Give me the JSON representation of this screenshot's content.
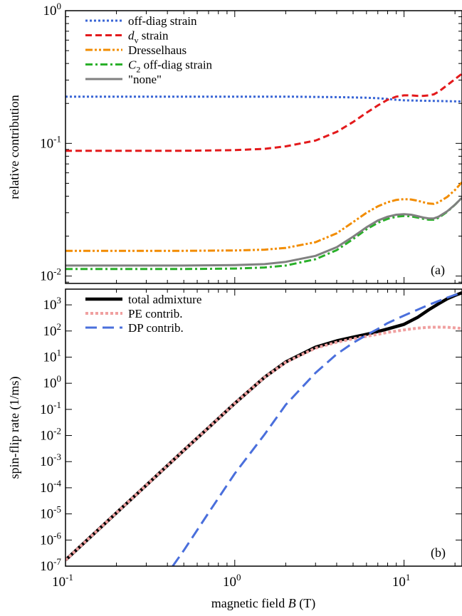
{
  "colors": {
    "blue": "#3a66d6",
    "red": "#e31a1c",
    "orange": "#f28c00",
    "green": "#2ab02a",
    "gray": "#808080",
    "black": "#000000",
    "pink": "#f0a0a0",
    "dp_blue": "#4a6fdc"
  },
  "chart_data": [
    {
      "type": "line",
      "panel_label": "(a)",
      "xscale": "log",
      "yscale": "log",
      "xlim": [
        0.1,
        22
      ],
      "ylim": [
        0.0088,
        1.0
      ],
      "ylabel": "relative contribution",
      "xlabel": "",
      "ytick_labels": [
        {
          "value": 1,
          "base": "10",
          "exp": "0"
        },
        {
          "value": 0.1,
          "base": "10",
          "exp": "-1"
        },
        {
          "value": 0.01,
          "base": "10",
          "exp": "-2"
        }
      ],
      "legend_position": "top-left",
      "series": [
        {
          "name": "off-diag strain",
          "style": "dotted",
          "color": "#3a66d6",
          "points": [
            [
              0.1,
              0.225
            ],
            [
              0.5,
              0.225
            ],
            [
              1,
              0.225
            ],
            [
              2,
              0.225
            ],
            [
              3,
              0.224
            ],
            [
              4,
              0.223
            ],
            [
              5,
              0.222
            ],
            [
              6,
              0.221
            ],
            [
              7,
              0.219
            ],
            [
              8,
              0.216
            ],
            [
              9,
              0.213
            ],
            [
              10,
              0.211
            ],
            [
              12,
              0.21
            ],
            [
              15,
              0.209
            ],
            [
              18,
              0.208
            ],
            [
              22,
              0.207
            ]
          ]
        },
        {
          "name": "d_v strain",
          "name_main": "d",
          "name_sub": "v",
          "name_rest": " strain",
          "style": "dashed",
          "color": "#e31a1c",
          "points": [
            [
              0.1,
              0.088
            ],
            [
              0.5,
              0.088
            ],
            [
              1,
              0.089
            ],
            [
              1.5,
              0.091
            ],
            [
              2,
              0.095
            ],
            [
              3,
              0.105
            ],
            [
              4,
              0.122
            ],
            [
              5,
              0.145
            ],
            [
              6,
              0.17
            ],
            [
              7,
              0.193
            ],
            [
              8,
              0.213
            ],
            [
              9,
              0.225
            ],
            [
              10,
              0.23
            ],
            [
              11,
              0.23
            ],
            [
              12,
              0.228
            ],
            [
              13,
              0.228
            ],
            [
              14,
              0.23
            ],
            [
              15,
              0.234
            ],
            [
              16,
              0.245
            ],
            [
              17,
              0.26
            ],
            [
              18,
              0.275
            ],
            [
              20,
              0.305
            ],
            [
              22,
              0.335
            ]
          ]
        },
        {
          "name": "Dresselhaus",
          "style": "dashdotdot",
          "color": "#f28c00",
          "points": [
            [
              0.1,
              0.0155
            ],
            [
              0.5,
              0.0155
            ],
            [
              1,
              0.0156
            ],
            [
              1.5,
              0.0158
            ],
            [
              2,
              0.0163
            ],
            [
              3,
              0.018
            ],
            [
              4,
              0.021
            ],
            [
              5,
              0.0255
            ],
            [
              6,
              0.03
            ],
            [
              7,
              0.0335
            ],
            [
              8,
              0.036
            ],
            [
              9,
              0.0375
            ],
            [
              10,
              0.038
            ],
            [
              11,
              0.0378
            ],
            [
              12,
              0.037
            ],
            [
              13,
              0.036
            ],
            [
              14,
              0.0352
            ],
            [
              15,
              0.035
            ],
            [
              16,
              0.036
            ],
            [
              18,
              0.0395
            ],
            [
              20,
              0.0445
            ],
            [
              22,
              0.051
            ]
          ]
        },
        {
          "name": "C_2 off-diag strain",
          "name_main": "C",
          "name_sub": "2",
          "name_rest": " off-diag strain",
          "style": "dashdot",
          "color": "#2ab02a",
          "points": [
            [
              0.1,
              0.0113
            ],
            [
              0.5,
              0.0113
            ],
            [
              1,
              0.0114
            ],
            [
              1.5,
              0.0116
            ],
            [
              2,
              0.012
            ],
            [
              3,
              0.0134
            ],
            [
              4,
              0.0157
            ],
            [
              5,
              0.019
            ],
            [
              6,
              0.0225
            ],
            [
              7,
              0.0252
            ],
            [
              8,
              0.027
            ],
            [
              9,
              0.028
            ],
            [
              10,
              0.0284
            ],
            [
              11,
              0.0282
            ],
            [
              12,
              0.0276
            ],
            [
              13,
              0.027
            ],
            [
              14,
              0.0266
            ],
            [
              15,
              0.0266
            ],
            [
              16,
              0.0275
            ],
            [
              18,
              0.0305
            ],
            [
              20,
              0.0345
            ],
            [
              22,
              0.039
            ]
          ]
        },
        {
          "name": "\"none\"",
          "style": "solid",
          "color": "#808080",
          "points": [
            [
              0.1,
              0.012
            ],
            [
              0.5,
              0.012
            ],
            [
              1,
              0.0121
            ],
            [
              1.5,
              0.0123
            ],
            [
              2,
              0.0128
            ],
            [
              3,
              0.0142
            ],
            [
              4,
              0.0165
            ],
            [
              5,
              0.0198
            ],
            [
              6,
              0.0233
            ],
            [
              7,
              0.0262
            ],
            [
              8,
              0.028
            ],
            [
              9,
              0.029
            ],
            [
              10,
              0.0293
            ],
            [
              11,
              0.029
            ],
            [
              12,
              0.0283
            ],
            [
              13,
              0.0276
            ],
            [
              14,
              0.0272
            ],
            [
              15,
              0.0272
            ],
            [
              16,
              0.028
            ],
            [
              18,
              0.0308
            ],
            [
              20,
              0.0345
            ],
            [
              22,
              0.039
            ]
          ]
        }
      ]
    },
    {
      "type": "line",
      "panel_label": "(b)",
      "xscale": "log",
      "yscale": "log",
      "xlim": [
        0.1,
        22
      ],
      "ylim": [
        1e-07,
        4000
      ],
      "ylabel": "spin-flip rate (1/ms)",
      "xlabel_main": "magnetic field ",
      "xlabel_var": "B",
      "xlabel_unit": " (T)",
      "xtick_labels": [
        {
          "value": 0.1,
          "base": "10",
          "exp": "-1"
        },
        {
          "value": 1,
          "base": "10",
          "exp": "0"
        },
        {
          "value": 10,
          "base": "10",
          "exp": "1"
        }
      ],
      "ytick_labels": [
        {
          "value": 1000.0,
          "base": "10",
          "exp": "3"
        },
        {
          "value": 100.0,
          "base": "10",
          "exp": "2"
        },
        {
          "value": 10.0,
          "base": "10",
          "exp": "1"
        },
        {
          "value": 1.0,
          "base": "10",
          "exp": "0"
        },
        {
          "value": 0.1,
          "base": "10",
          "exp": "-1"
        },
        {
          "value": 0.01,
          "base": "10",
          "exp": "-2"
        },
        {
          "value": 0.001,
          "base": "10",
          "exp": "-3"
        },
        {
          "value": 0.0001,
          "base": "10",
          "exp": "-4"
        },
        {
          "value": 1e-05,
          "base": "10",
          "exp": "-5"
        },
        {
          "value": 1e-06,
          "base": "10",
          "exp": "-6"
        },
        {
          "value": 1e-07,
          "base": "10",
          "exp": "-7"
        }
      ],
      "legend_position": "top-left",
      "series": [
        {
          "name": "total admixture",
          "style": "solid-thick",
          "color": "#000000",
          "points": [
            [
              0.1,
              1.7e-07
            ],
            [
              0.2,
              1.1e-05
            ],
            [
              0.3,
              0.000125
            ],
            [
              0.5,
              0.0027
            ],
            [
              0.7,
              0.02
            ],
            [
              1,
              0.17
            ],
            [
              1.5,
              1.7
            ],
            [
              2,
              6.5
            ],
            [
              3,
              24
            ],
            [
              4,
              42
            ],
            [
              5,
              58
            ],
            [
              6,
              75
            ],
            [
              7,
              95
            ],
            [
              8,
              120
            ],
            [
              10,
              180
            ],
            [
              12,
              330
            ],
            [
              14,
              650
            ],
            [
              16,
              1100
            ],
            [
              18,
              1700
            ],
            [
              20,
              2300
            ],
            [
              22,
              2900
            ]
          ]
        },
        {
          "name": "PE contrib.",
          "style": "dotted-thick",
          "color": "#f0a0a0",
          "points": [
            [
              0.1,
              1.7e-07
            ],
            [
              0.2,
              1.1e-05
            ],
            [
              0.3,
              0.000125
            ],
            [
              0.5,
              0.0027
            ],
            [
              0.7,
              0.02
            ],
            [
              1,
              0.17
            ],
            [
              1.5,
              1.7
            ],
            [
              2,
              6.3
            ],
            [
              3,
              22
            ],
            [
              4,
              37
            ],
            [
              5,
              50
            ],
            [
              6,
              62
            ],
            [
              7,
              75
            ],
            [
              8,
              88
            ],
            [
              10,
              110
            ],
            [
              12,
              128
            ],
            [
              14,
              138
            ],
            [
              16,
              140
            ],
            [
              18,
              138
            ],
            [
              20,
              132
            ],
            [
              22,
              125
            ]
          ]
        },
        {
          "name": "DP contrib.",
          "style": "longdash",
          "color": "#4a6fdc",
          "points": [
            [
              0.43,
              1e-07
            ],
            [
              0.5,
              4e-07
            ],
            [
              0.7,
              1.1e-05
            ],
            [
              1,
              0.00035
            ],
            [
              1.5,
              0.011
            ],
            [
              2,
              0.15
            ],
            [
              3,
              2.5
            ],
            [
              4,
              13
            ],
            [
              5,
              35
            ],
            [
              6,
              70
            ],
            [
              7,
              120
            ],
            [
              8,
              200
            ],
            [
              10,
              390
            ],
            [
              12,
              650
            ],
            [
              14,
              1000
            ],
            [
              16,
              1400
            ],
            [
              18,
              1900
            ],
            [
              20,
              2400
            ],
            [
              22,
              2900
            ]
          ]
        }
      ]
    }
  ]
}
